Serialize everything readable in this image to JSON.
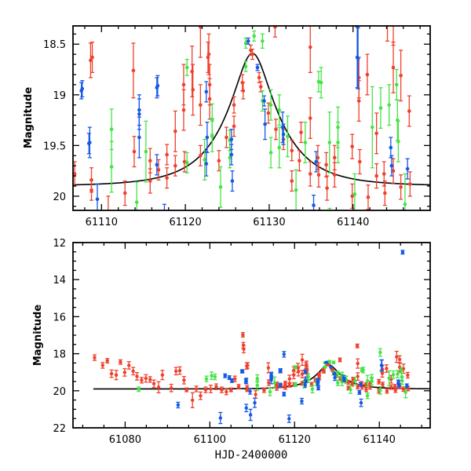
{
  "chart_data": [
    {
      "type": "scatter",
      "panel": "top",
      "title": "",
      "xlabel": "",
      "ylabel": "Magnitude",
      "xlim": [
        61106.6,
        61149.2
      ],
      "ylim": [
        18.32,
        20.14
      ],
      "y_inverted": true,
      "x_ticks": [
        61110,
        61120,
        61130,
        61140
      ],
      "x_tick_labels": [
        "61110",
        "61120",
        "61130",
        "61140"
      ],
      "x_minor_step": 2,
      "y_ticks": [
        18.5,
        19,
        19.5,
        20
      ],
      "y_tick_labels": [
        "18.5",
        "19",
        "19.5",
        "20"
      ],
      "y_minor_step": 0.1,
      "grid": false
    },
    {
      "type": "scatter",
      "panel": "bottom",
      "title": "",
      "xlabel": "HJD-2400000",
      "ylabel": "Magnitude",
      "xlim": [
        61067.7,
        61152
      ],
      "ylim": [
        12,
        22
      ],
      "y_inverted": true,
      "x_ticks": [
        61080,
        61100,
        61120,
        61140
      ],
      "x_tick_labels": [
        "61080",
        "61100",
        "61120",
        "61140"
      ],
      "x_minor_step": 5,
      "y_ticks": [
        12,
        14,
        16,
        18,
        20,
        22
      ],
      "y_tick_labels": [
        "12",
        "14",
        "16",
        "18",
        "20",
        "22"
      ],
      "y_minor_step": 0.5,
      "grid": false
    }
  ],
  "model": {
    "t0": 61128.0,
    "u0": 0.31,
    "tE": 6.3,
    "baseline": 19.9,
    "color": "#000000",
    "bottom_start": 61072.5
  },
  "series": [
    {
      "name": "red",
      "color": "#f0402c",
      "points": [
        [
          61072.8,
          18.21,
          0.15
        ],
        [
          61074.7,
          18.63,
          0.15
        ],
        [
          61075.8,
          18.38,
          0.12
        ],
        [
          61076.8,
          19.08,
          0.2
        ],
        [
          61077.9,
          19.15,
          0.25
        ],
        [
          61078.9,
          18.45,
          0.12
        ],
        [
          61079.9,
          19.01,
          0.2
        ],
        [
          61080.9,
          18.63,
          0.2
        ],
        [
          61081.9,
          18.94,
          0.2
        ],
        [
          61082.8,
          19.22,
          0.2
        ],
        [
          61083.9,
          19.43,
          0.15
        ],
        [
          61084.9,
          19.33,
          0.2
        ],
        [
          61085.9,
          19.39,
          0.15
        ],
        [
          61086.8,
          19.62,
          0.2
        ],
        [
          61087.9,
          19.81,
          0.3
        ],
        [
          61088.8,
          19.15,
          0.25
        ],
        [
          61090.9,
          19.85,
          0.2
        ],
        [
          61092.0,
          18.94,
          0.2
        ],
        [
          61092.9,
          18.91,
          0.2
        ],
        [
          61093.9,
          19.43,
          0.2
        ],
        [
          61094.5,
          19.95,
          0.1
        ],
        [
          61095.9,
          20.51,
          0.4
        ],
        [
          61096.8,
          19.9,
          0.15
        ],
        [
          61097.8,
          20.27,
          0.2
        ],
        [
          61099.0,
          19.95,
          0.15
        ],
        [
          61100.2,
          19.9,
          0.2
        ],
        [
          61101.5,
          19.78,
          0.15
        ],
        [
          61102.8,
          19.95,
          0.15
        ],
        [
          61103.9,
          20.06,
          0.15
        ],
        [
          61105.0,
          19.95,
          0.1
        ],
        [
          61105.9,
          19.36,
          0.15
        ],
        [
          61107.8,
          16.98,
          0.12
        ],
        [
          61107.9,
          17.54,
          0.15
        ],
        [
          61108.0,
          17.75,
          0.2
        ],
        [
          61108.9,
          18.63,
          0.15
        ],
        [
          61106.8,
          19.78,
          0.12
        ],
        [
          61108.7,
          18.66,
          0.17
        ],
        [
          61108.8,
          19.84,
          0.12
        ],
        [
          61108.8,
          19.94,
          0.1
        ],
        [
          61110.8,
          20.2,
          0.2
        ],
        [
          61112.8,
          19.97,
          0.12
        ],
        [
          61113.8,
          18.76,
          0.27
        ],
        [
          61113.9,
          19.56,
          0.15
        ],
        [
          61115.8,
          19.65,
          0.12
        ],
        [
          61115.8,
          19.85,
          0.12
        ],
        [
          61116.8,
          19.74,
          0.1
        ],
        [
          61117.8,
          19.59,
          0.1
        ],
        [
          61117.8,
          19.82,
          0.1
        ],
        [
          61118.8,
          19.36,
          0.2
        ],
        [
          61118.8,
          19.7,
          0.1
        ],
        [
          61119.8,
          18.9,
          0.2
        ],
        [
          61119.8,
          19.15,
          0.2
        ],
        [
          61119.9,
          19.66,
          0.1
        ],
        [
          61120.8,
          18.77,
          0.25
        ],
        [
          61120.9,
          18.95,
          0.25
        ],
        [
          61121.8,
          19.1,
          0.2
        ],
        [
          61121.8,
          18.33,
          0.3
        ],
        [
          61121.8,
          19.6,
          0.1
        ],
        [
          61122.7,
          18.63,
          0.15
        ],
        [
          61122.8,
          18.6,
          0.2
        ],
        [
          61122.9,
          18.9,
          0.2
        ],
        [
          61122.9,
          19.04,
          0.2
        ],
        [
          61124.0,
          19.65,
          0.1
        ],
        [
          61124.9,
          19.42,
          0.1
        ],
        [
          61125.8,
          19.1,
          0.08
        ],
        [
          61125.8,
          19.31,
          0.1
        ],
        [
          61126.8,
          18.88,
          0.08
        ],
        [
          61126.9,
          18.96,
          0.08
        ],
        [
          61127.8,
          18.56,
          0.05
        ],
        [
          61128.0,
          18.6,
          0.05
        ],
        [
          61128.8,
          18.83,
          0.05
        ],
        [
          61129.0,
          18.92,
          0.05
        ],
        [
          61129.9,
          19.18,
          0.1
        ],
        [
          61130.7,
          18.33,
          0.1
        ],
        [
          61130.8,
          19.34,
          0.1
        ],
        [
          61131.7,
          19.44,
          0.1
        ],
        [
          61132.7,
          19.55,
          0.1
        ],
        [
          61132.7,
          19.85,
          0.1
        ],
        [
          61133.6,
          19.65,
          0.1
        ],
        [
          61133.8,
          19.37,
          0.1
        ],
        [
          61134.8,
          17.58,
          0.1
        ],
        [
          61134.9,
          18.53,
          0.25
        ],
        [
          61134.9,
          19.23,
          0.2
        ],
        [
          61134.9,
          19.78,
          0.12
        ],
        [
          61135.8,
          19.62,
          0.12
        ],
        [
          61135.9,
          19.79,
          0.12
        ],
        [
          61136.8,
          19.69,
          0.12
        ],
        [
          61136.9,
          19.92,
          0.12
        ],
        [
          61137.8,
          19.62,
          0.12
        ],
        [
          61137.8,
          19.79,
          0.12
        ],
        [
          61139.9,
          19.51,
          0.12
        ],
        [
          61139.9,
          20.0,
          0.12
        ],
        [
          61140.7,
          18.83,
          0.2
        ],
        [
          61140.7,
          19.06,
          0.2
        ],
        [
          61140.8,
          19.66,
          0.12
        ],
        [
          61141.7,
          18.8,
          0.2
        ],
        [
          61141.8,
          20.01,
          0.12
        ],
        [
          61142.8,
          19.38,
          0.2
        ],
        [
          61142.8,
          19.8,
          0.12
        ],
        [
          61143.7,
          19.78,
          0.12
        ],
        [
          61143.8,
          19.97,
          0.12
        ],
        [
          61144.1,
          18.17,
          0.3
        ],
        [
          61144.8,
          18.31,
          0.2
        ],
        [
          61144.8,
          18.73,
          0.25
        ],
        [
          61144.8,
          19.75,
          0.12
        ],
        [
          61145.7,
          18.81,
          0.25
        ],
        [
          61145.7,
          19.91,
          0.12
        ],
        [
          61146.7,
          19.16,
          0.15
        ],
        [
          61146.8,
          19.88,
          0.12
        ]
      ]
    },
    {
      "name": "green",
      "color": "#44e444",
      "points": [
        [
          61083.2,
          19.92,
          0.12
        ],
        [
          61099.2,
          19.36,
          0.15
        ],
        [
          61100.4,
          19.19,
          0.2
        ],
        [
          61101.2,
          19.25,
          0.15
        ],
        [
          61111.2,
          19.34,
          0.2
        ],
        [
          61111.2,
          19.71,
          0.25
        ],
        [
          61114.2,
          20.06,
          0.2
        ],
        [
          61115.3,
          19.56,
          0.3
        ],
        [
          61120.2,
          18.73,
          0.08
        ],
        [
          61120.2,
          19.67,
          0.1
        ],
        [
          61122.3,
          19.64,
          0.2
        ],
        [
          61123.2,
          19.24,
          0.15
        ],
        [
          61123.2,
          19.41,
          0.15
        ],
        [
          61124.2,
          19.91,
          0.2
        ],
        [
          61125.3,
          19.45,
          0.1
        ],
        [
          61125.3,
          19.62,
          0.1
        ],
        [
          61127.2,
          18.49,
          0.05
        ],
        [
          61127.2,
          18.72,
          0.05
        ],
        [
          61128.2,
          18.42,
          0.05
        ],
        [
          61129.2,
          18.47,
          0.07
        ],
        [
          61129.2,
          19.06,
          0.1
        ],
        [
          61130.2,
          19.1,
          0.15
        ],
        [
          61130.2,
          19.57,
          0.15
        ],
        [
          61131.2,
          19.15,
          0.15
        ],
        [
          61131.2,
          19.52,
          0.2
        ],
        [
          61132.2,
          19.41,
          0.2
        ],
        [
          61133.2,
          19.94,
          0.2
        ],
        [
          61134.3,
          19.47,
          0.2
        ],
        [
          61135.9,
          18.87,
          0.1
        ],
        [
          61136.2,
          18.88,
          0.15
        ],
        [
          61137.2,
          19.47,
          0.3
        ],
        [
          61137.2,
          20.27,
          0.15
        ],
        [
          61138.2,
          19.32,
          0.2
        ],
        [
          61138.2,
          19.47,
          0.2
        ],
        [
          61140.2,
          17.93,
          0.2
        ],
        [
          61140.2,
          19.98,
          0.2
        ],
        [
          61142.3,
          19.32,
          0.4
        ],
        [
          61143.3,
          19.13,
          0.2
        ],
        [
          61144.3,
          19.1,
          0.2
        ],
        [
          61145.2,
          18.9,
          0.15
        ],
        [
          61145.3,
          19.25,
          0.2
        ],
        [
          61145.4,
          19.46,
          0.2
        ],
        [
          61146.2,
          20.08,
          0.3
        ]
      ]
    },
    {
      "name": "blue",
      "color": "#1558e6",
      "points": [
        [
          61092.5,
          20.77,
          0.15
        ],
        [
          61102.5,
          21.47,
          0.3
        ],
        [
          61103.6,
          19.19,
          0.1
        ],
        [
          61104.6,
          19.29,
          0.1
        ],
        [
          61105.2,
          19.45,
          0.1
        ],
        [
          61107.6,
          18.96,
          0.08
        ],
        [
          61107.7,
          18.94,
          0.08
        ],
        [
          61108.5,
          19.48,
          0.1
        ],
        [
          61108.6,
          19.47,
          0.15
        ],
        [
          61108.6,
          20.93,
          0.2
        ],
        [
          61109.5,
          20.03,
          0.15
        ],
        [
          61109.6,
          21.3,
          0.3
        ],
        [
          61110.6,
          20.65,
          0.25
        ],
        [
          61114.5,
          19.15,
          0.15
        ],
        [
          61114.5,
          19.19,
          0.15
        ],
        [
          61114.5,
          19.42,
          0.2
        ],
        [
          61116.6,
          18.93,
          0.1
        ],
        [
          61116.6,
          19.69,
          0.1
        ],
        [
          61116.7,
          18.91,
          0.1
        ],
        [
          61117.5,
          18.03,
          0.15
        ],
        [
          61117.5,
          20.18,
          0.1
        ],
        [
          61118.7,
          21.51,
          0.2
        ],
        [
          61121.7,
          20.56,
          0.15
        ],
        [
          61122.5,
          18.97,
          0.1
        ],
        [
          61122.5,
          19.68,
          0.12
        ],
        [
          61122.6,
          19.42,
          0.15
        ],
        [
          61125.5,
          19.44,
          0.1
        ],
        [
          61125.5,
          19.59,
          0.1
        ],
        [
          61125.6,
          19.85,
          0.1
        ],
        [
          61127.5,
          18.47,
          0.03
        ],
        [
          61128.6,
          18.73,
          0.03
        ],
        [
          61129.4,
          19.06,
          0.05
        ],
        [
          61129.5,
          19.29,
          0.15
        ],
        [
          61131.6,
          19.32,
          0.15
        ],
        [
          61131.7,
          19.39,
          0.1
        ],
        [
          61135.3,
          20.09,
          0.1
        ],
        [
          61135.6,
          19.66,
          0.1
        ],
        [
          61135.7,
          20.65,
          0.2
        ],
        [
          61140.5,
          18.63,
          0.3
        ],
        [
          61140.6,
          18.64,
          0.3
        ],
        [
          61144.5,
          19.52,
          0.1
        ],
        [
          61144.6,
          19.7,
          0.1
        ],
        [
          61145.5,
          12.52,
          0.1
        ],
        [
          61146.5,
          19.73,
          0.1
        ]
      ]
    }
  ]
}
